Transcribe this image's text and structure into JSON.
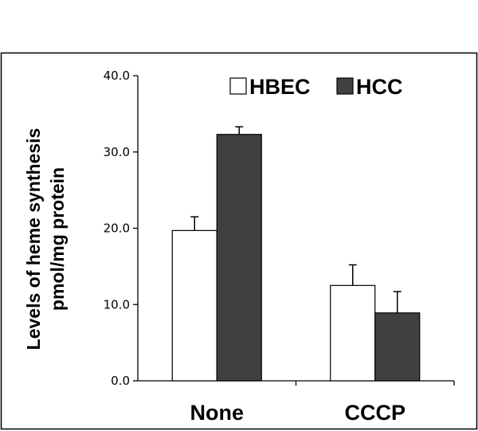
{
  "chart_data": {
    "type": "bar",
    "categories": [
      "None",
      "CCCP"
    ],
    "series": [
      {
        "name": "HBEC",
        "values": [
          19.7,
          12.5
        ],
        "errors": [
          1.8,
          2.7
        ],
        "color": "#ffffff"
      },
      {
        "name": "HCC",
        "values": [
          32.3,
          8.9
        ],
        "errors": [
          1.0,
          2.8
        ],
        "color": "#404040"
      }
    ],
    "ylabel": [
      "Levels of heme synthesis",
      "pmol/mg protein"
    ],
    "ylim": [
      0,
      40
    ],
    "yticks": [
      "0.0",
      "10.0",
      "20.0",
      "30.0",
      "40.0"
    ],
    "grid": false,
    "legend_position": "top-right"
  }
}
